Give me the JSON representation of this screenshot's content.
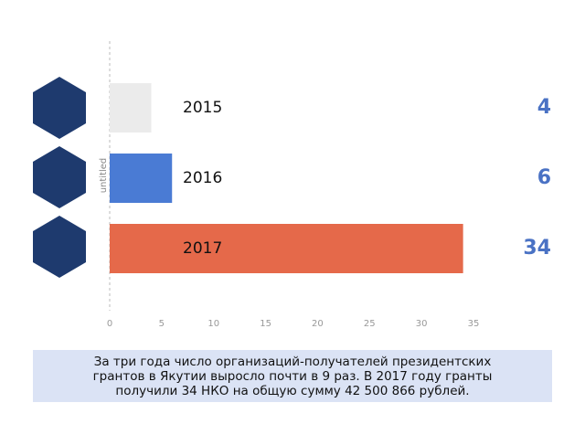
{
  "chart_data": {
    "type": "bar",
    "orientation": "horizontal",
    "categories": [
      "2015",
      "2016",
      "2017"
    ],
    "values": [
      4,
      6,
      34
    ],
    "colors": [
      "#ebebeb",
      "#4a7bd4",
      "#e5694a"
    ],
    "value_color": "#4a72c4",
    "xlim": [
      0,
      35
    ],
    "xticks": [
      0,
      5,
      10,
      15,
      20,
      25,
      30,
      35
    ],
    "ylabel": "untitled",
    "annotation": [
      "За три года число организаций-получателей президентских",
      "грантов в Якутии выросло почти в 9 раз. В 2017 году гранты",
      "получили 34 НКО на общую сумму 42 500 866 рублей."
    ]
  }
}
